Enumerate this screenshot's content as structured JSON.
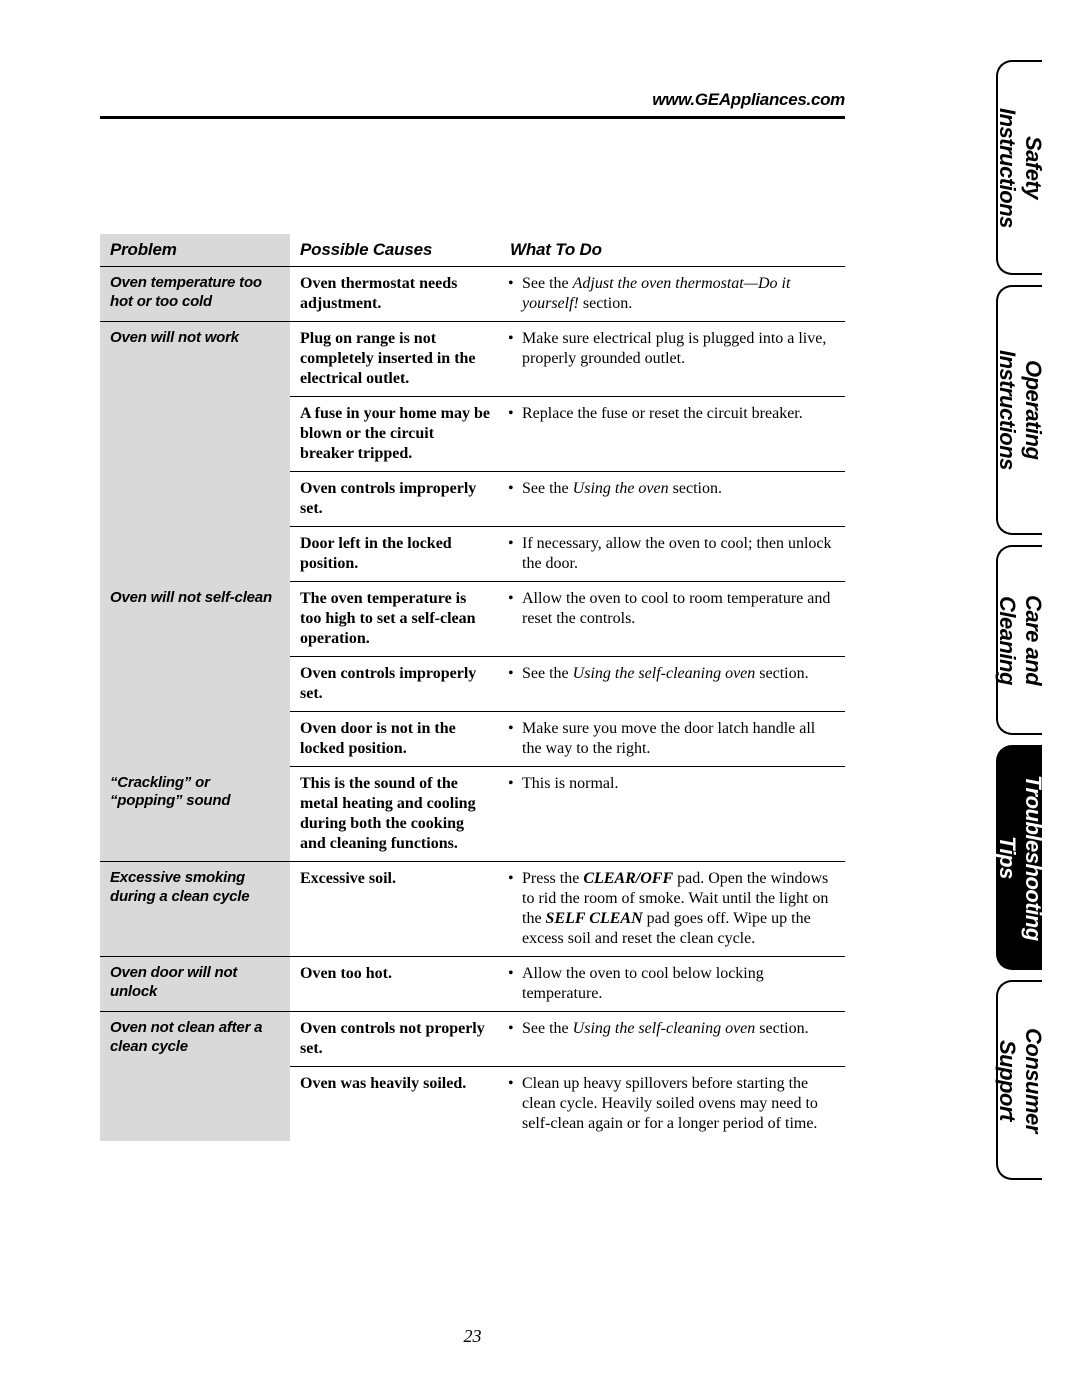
{
  "url": "www.GEAppliances.com",
  "page_number": "23",
  "headers": {
    "problem": "Problem",
    "causes": "Possible Causes",
    "todo": "What To Do"
  },
  "tabs": {
    "safety": "Safety Instructions",
    "operating": "Operating Instructions",
    "care": "Care and Cleaning",
    "trouble": "Troubleshooting Tips",
    "consumer": "Consumer Support"
  },
  "rows": {
    "r1": {
      "problem": "Oven temperature too hot or too cold",
      "cause": "Oven thermostat needs adjustment.",
      "todo_pre": "See the ",
      "todo_it": "Adjust the oven thermostat—Do it yourself!",
      "todo_post": " section."
    },
    "r2": {
      "problem": "Oven will not work",
      "cause": "Plug on range is not completely inserted in the electrical outlet.",
      "todo": "Make sure electrical plug is plugged into a live, properly grounded outlet."
    },
    "r3": {
      "cause": "A fuse in your home may be blown or the circuit breaker tripped.",
      "todo": "Replace the fuse or reset the circuit breaker."
    },
    "r4": {
      "cause": "Oven controls improperly set.",
      "todo_pre": "See the ",
      "todo_it": "Using the oven",
      "todo_post": " section."
    },
    "r5": {
      "cause": "Door left in the locked position.",
      "todo": "If necessary, allow the oven to cool; then unlock the door."
    },
    "r6": {
      "problem": "Oven will not self-clean",
      "cause": "The oven temperature is too high to set a self-clean operation.",
      "todo": "Allow the oven to cool to room temperature and reset the controls."
    },
    "r7": {
      "cause": "Oven controls improperly set.",
      "todo_pre": "See the ",
      "todo_it": "Using the self-cleaning oven",
      "todo_post": " section."
    },
    "r8": {
      "cause": "Oven door is not in the locked position.",
      "todo": "Make sure you move the door latch handle all the way to the right."
    },
    "r9": {
      "problem": "“Crackling” or “popping” sound",
      "cause": "This is the sound of the metal heating and cooling during both the cooking and cleaning functions.",
      "todo": "This is normal."
    },
    "r10": {
      "problem": "Excessive smoking during a clean cycle",
      "cause": "Excessive soil.",
      "todo_pre": "Press the ",
      "todo_b1": "CLEAR/OFF",
      "todo_mid1": " pad. Open the windows to rid the room of smoke. Wait until the light on the ",
      "todo_b2": "SELF CLEAN",
      "todo_post": " pad goes off. Wipe up the excess soil and reset the clean cycle."
    },
    "r11": {
      "problem": "Oven door will not unlock",
      "cause": "Oven too hot.",
      "todo": "Allow the oven to cool below locking temperature."
    },
    "r12": {
      "problem": "Oven not clean after a clean cycle",
      "cause": "Oven controls not properly set.",
      "todo_pre": "See the ",
      "todo_it": "Using the self-cleaning oven",
      "todo_post": " section."
    },
    "r13": {
      "cause": "Oven was heavily soiled.",
      "todo": "Clean up heavy spillovers before starting the clean cycle. Heavily soiled ovens may need to self-clean again or for a longer period of time."
    }
  }
}
